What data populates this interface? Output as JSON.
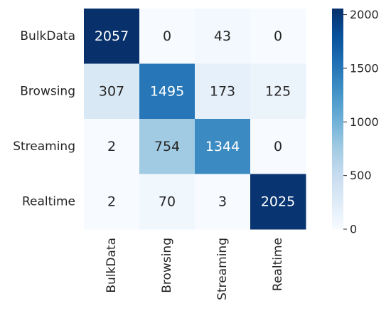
{
  "chart_data": {
    "type": "heatmap",
    "rows": [
      "BulkData",
      "Browsing",
      "Streaming",
      "Realtime"
    ],
    "columns": [
      "BulkData",
      "Browsing",
      "Streaming",
      "Realtime"
    ],
    "values": [
      [
        2057,
        0,
        43,
        0
      ],
      [
        307,
        1495,
        173,
        125
      ],
      [
        2,
        754,
        1344,
        0
      ],
      [
        2,
        70,
        3,
        2025
      ]
    ],
    "colormap": "Blues",
    "color_range": [
      0,
      2057
    ],
    "colorbar": {
      "ticks": [
        0,
        500,
        1000,
        1500,
        2000
      ],
      "tick_labels": [
        "0",
        "500",
        "1000",
        "1500",
        "2000"
      ],
      "placement": "right"
    },
    "title": "",
    "xlabel": "",
    "ylabel": ""
  }
}
